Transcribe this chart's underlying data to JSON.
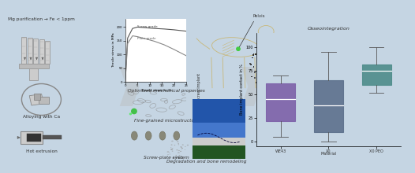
{
  "bg_color": "#c5d5e3",
  "text_color": "#333333",
  "arrow_color": "#c0c8d0",
  "left_labels": [
    "Mg purification → Fe < 1ppm",
    "Alloying with Ca",
    "Hot extrusion"
  ],
  "mid_labels": [
    "Optimized mechanical properties",
    "Fine-grained microstructure",
    "Screw-plate system"
  ],
  "right_top_label": "Pelvis",
  "right_bot_label": "Degradation and bone remodeling",
  "box_title": "Osseointegration",
  "box_labels": [
    "WE43",
    "X0",
    "X0 PEO"
  ],
  "ylabel_box": "Bone implant contact in %",
  "material_label": "Material",
  "screw_implant_label": "Screw implant",
  "box_colors": [
    "#7b5ea7",
    "#5a6e8a",
    "#4a8a88"
  ],
  "strain": [
    0,
    1,
    3,
    5,
    8,
    12,
    16,
    20,
    25
  ],
  "screw": [
    0,
    160,
    195,
    200,
    198,
    195,
    193,
    190,
    185
  ],
  "plate": [
    0,
    140,
    168,
    165,
    158,
    148,
    135,
    118,
    95
  ],
  "ss_color_screw": "#555555",
  "ss_color_plate": "#888888",
  "box_data": [
    {
      "q1": 22,
      "med": 45,
      "q3": 62,
      "whislo": 5,
      "whishi": 70
    },
    {
      "q1": 10,
      "med": 38,
      "q3": 65,
      "whislo": 0,
      "whishi": 95
    },
    {
      "q1": 60,
      "med": 75,
      "q3": 82,
      "whislo": 52,
      "whishi": 100
    }
  ]
}
